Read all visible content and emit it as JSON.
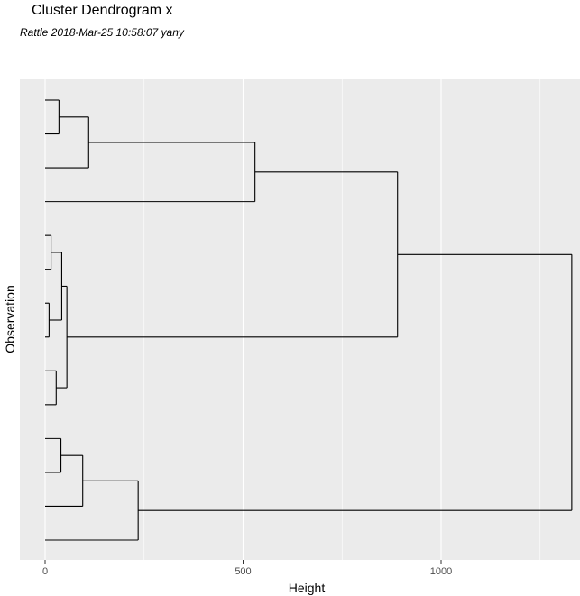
{
  "chart_data": {
    "type": "dendrogram",
    "title": "Cluster Dendrogram x",
    "subtitle": "Rattle 2018-Mar-25 10:58:07 yany",
    "xlabel": "Height",
    "ylabel": "Observation",
    "xlim": [
      -65,
      1345
    ],
    "x_ticks": [
      0,
      500,
      1000
    ],
    "x_tick_labels": [
      "0",
      "500",
      "1000"
    ],
    "x_minor_gridlines": [
      250,
      750,
      1250
    ],
    "grid": true,
    "background_color": "#ebebeb",
    "gridline_color": "#ffffff",
    "line_color": "#000000",
    "leaf_count": 14,
    "merges": [
      {
        "height": 35,
        "pair": [
          [
            0,
            0
          ],
          [
            0,
            1
          ]
        ]
      },
      {
        "height": 110,
        "pair": [
          [
            2,
            0
          ],
          [
            0,
            2
          ]
        ]
      },
      {
        "height": 530,
        "pair": [
          [
            3,
            1
          ],
          [
            0,
            3
          ]
        ]
      },
      {
        "height": 15,
        "pair": [
          [
            0,
            4
          ],
          [
            0,
            5
          ]
        ]
      },
      {
        "height": 10,
        "pair": [
          [
            0,
            6
          ],
          [
            0,
            7
          ]
        ]
      },
      {
        "height": 42,
        "pair": [
          [
            3,
            3
          ],
          [
            3,
            4
          ]
        ]
      },
      {
        "height": 28,
        "pair": [
          [
            0,
            8
          ],
          [
            0,
            9
          ]
        ]
      },
      {
        "height": 55,
        "pair": [
          [
            3,
            5
          ],
          [
            3,
            6
          ]
        ]
      },
      {
        "height": 890,
        "pair": [
          [
            3,
            2
          ],
          [
            3,
            7
          ]
        ]
      },
      {
        "height": 40,
        "pair": [
          [
            0,
            10
          ],
          [
            0,
            11
          ]
        ]
      },
      {
        "height": 95,
        "pair": [
          [
            3,
            9
          ],
          [
            0,
            12
          ]
        ]
      },
      {
        "height": 235,
        "pair": [
          [
            3,
            10
          ],
          [
            0,
            13
          ]
        ]
      },
      {
        "height": 1330,
        "pair": [
          [
            3,
            8
          ],
          [
            3,
            11
          ]
        ]
      }
    ]
  }
}
